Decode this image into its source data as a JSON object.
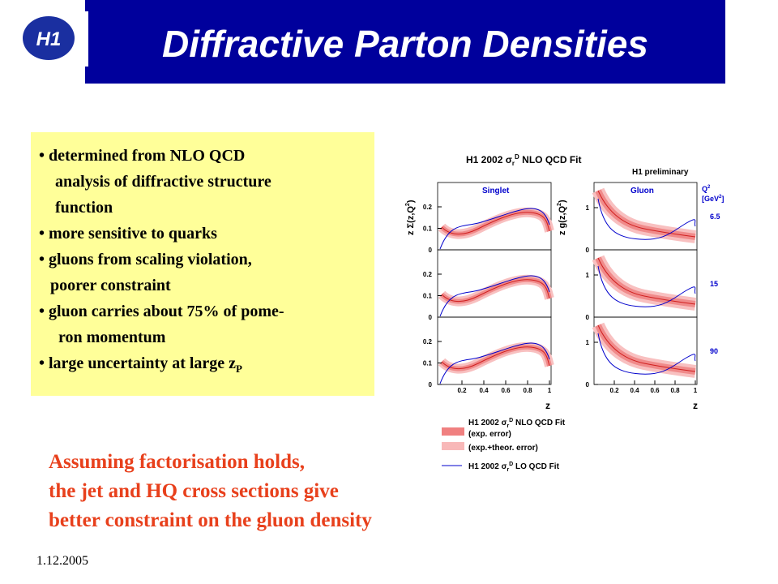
{
  "header": {
    "logo": "H1",
    "title": "Diffractive Parton Densities"
  },
  "bullets": [
    "• determined from NLO QCD",
    "analysis of diffractive structure",
    "function",
    "• more sensitive to quarks",
    "• gluons from scaling violation,",
    "poorer constraint",
    "• gluon carries about 75% of pome-",
    "ron momentum",
    "• large uncertainty at large z"
  ],
  "bullet_subscript": "P",
  "conclusion": [
    "Assuming factorisation holds,",
    "the jet and HQ cross sections give",
    "better constraint on the gluon density"
  ],
  "date": "1.12.2005",
  "figure": {
    "title": [
      "H1 2002 σ",
      "r",
      "D",
      " NLO QCD Fit"
    ],
    "preliminary": "H1 preliminary",
    "singlet_label": "Singlet",
    "gluon_label": "Gluon",
    "singlet_axis": [
      "z Σ(z,Q",
      "2",
      ")"
    ],
    "gluon_axis": [
      "z g(z,Q",
      "2",
      ")"
    ],
    "q2_header": [
      "Q",
      "2",
      "[GeV",
      "2",
      "]"
    ],
    "q2_values": [
      "6.5",
      "15",
      "90"
    ],
    "singlet_yticks": [
      0.2,
      0.1,
      0
    ],
    "gluon_yticks": [
      1,
      0
    ],
    "xticks": [
      0.2,
      0.4,
      0.6,
      0.8,
      1
    ],
    "x_label": "z",
    "legend": {
      "nlo": [
        "H1 2002 σ",
        "r",
        "D",
        " NLO QCD Fit"
      ],
      "exp": "(exp. error)",
      "theor": "(exp.+theor. error)",
      "lo": [
        "H1 2002 σ",
        "r",
        "D",
        " LO QCD Fit"
      ]
    }
  }
}
